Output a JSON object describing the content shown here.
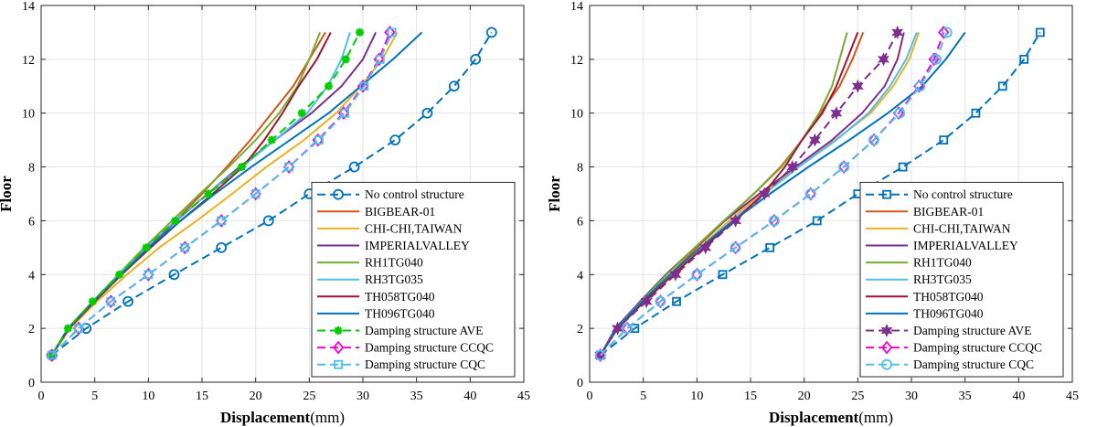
{
  "chart_data": [
    {
      "type": "line",
      "xlabel": "Displacement",
      "xunit": "(mm)",
      "ylabel": "Floor",
      "xlim": [
        0,
        45
      ],
      "ylim": [
        0,
        14
      ],
      "xticks": [
        0,
        5,
        10,
        15,
        20,
        25,
        30,
        35,
        40,
        45
      ],
      "yticks": [
        0,
        2,
        4,
        6,
        8,
        10,
        12,
        14
      ],
      "grid": true,
      "legend_position": "bottom-right",
      "series": [
        {
          "name": "No control structure",
          "color": "#0072BD",
          "dash": "dashed",
          "marker": "circle",
          "x": [
            1.0,
            4.2,
            8.1,
            12.4,
            16.8,
            21.2,
            25.0,
            29.2,
            33.0,
            36.0,
            38.5,
            40.5,
            42.0
          ],
          "y": [
            1,
            2,
            3,
            4,
            5,
            6,
            7,
            8,
            9,
            10,
            11,
            12,
            13
          ]
        },
        {
          "name": "BIGBEAR-01",
          "color": "#D95319",
          "dash": "solid",
          "marker": "none",
          "x": [
            1.0,
            2.5,
            5.0,
            7.5,
            10.0,
            12.5,
            15.0,
            17.3,
            19.5,
            21.5,
            23.5,
            25.0,
            26.5
          ],
          "y": [
            1,
            2,
            3,
            4,
            5,
            6,
            7,
            8,
            9,
            10,
            11,
            12,
            13
          ]
        },
        {
          "name": "CHI-CHI,TAIWAN",
          "color": "#EDB120",
          "dash": "solid",
          "marker": "none",
          "x": [
            1.0,
            2.7,
            5.2,
            8.0,
            11.0,
            14.5,
            17.8,
            21.0,
            24.5,
            27.5,
            29.8,
            31.8,
            33.2
          ],
          "y": [
            1,
            2,
            3,
            4,
            5,
            6,
            7,
            8,
            9,
            10,
            11,
            12,
            13
          ]
        },
        {
          "name": "IMPERIALVALLEY",
          "color": "#7E2F8E",
          "dash": "solid",
          "marker": "none",
          "x": [
            1.0,
            2.5,
            4.9,
            7.4,
            10.0,
            12.6,
            15.5,
            18.5,
            21.8,
            25.2,
            28.0,
            30.0,
            31.2
          ],
          "y": [
            1,
            2,
            3,
            4,
            5,
            6,
            7,
            8,
            9,
            10,
            11,
            12,
            13
          ]
        },
        {
          "name": "RH1TG040",
          "color": "#77AC30",
          "dash": "solid",
          "marker": "none",
          "x": [
            1.0,
            2.5,
            4.8,
            7.2,
            9.6,
            12.2,
            14.8,
            17.5,
            20.0,
            22.2,
            23.9,
            25.0,
            26.0
          ],
          "y": [
            1,
            2,
            3,
            4,
            5,
            6,
            7,
            8,
            9,
            10,
            11,
            12,
            13
          ]
        },
        {
          "name": "RH3TG035",
          "color": "#4DBEEE",
          "dash": "solid",
          "marker": "none",
          "x": [
            1.0,
            2.6,
            4.9,
            7.3,
            9.8,
            12.5,
            15.5,
            18.7,
            21.8,
            24.8,
            26.7,
            28.0,
            28.8
          ],
          "y": [
            1,
            2,
            3,
            4,
            5,
            6,
            7,
            8,
            9,
            10,
            11,
            12,
            13
          ]
        },
        {
          "name": "TH058TG040",
          "color": "#A2142F",
          "dash": "solid",
          "marker": "none",
          "x": [
            1.0,
            2.6,
            5.0,
            7.5,
            10.2,
            13.0,
            16.0,
            18.8,
            20.8,
            22.5,
            24.0,
            25.7,
            27.0
          ],
          "y": [
            1,
            2,
            3,
            4,
            5,
            6,
            7,
            8,
            9,
            10,
            11,
            12,
            13
          ]
        },
        {
          "name": "TH096TG040",
          "color": "#0072BD",
          "dash": "solid",
          "marker": "none",
          "x": [
            1.0,
            2.5,
            4.9,
            7.4,
            10.0,
            13.0,
            16.2,
            19.6,
            23.2,
            26.8,
            29.8,
            32.8,
            35.5
          ],
          "y": [
            1,
            2,
            3,
            4,
            5,
            6,
            7,
            8,
            9,
            10,
            11,
            12,
            13
          ]
        },
        {
          "name": "Damping structure AVE",
          "color": "#00CC00",
          "dash": "dashed",
          "marker": "asterisk",
          "x": [
            1.0,
            2.5,
            4.8,
            7.3,
            9.8,
            12.5,
            15.6,
            18.7,
            21.5,
            24.3,
            26.8,
            28.4,
            29.7
          ],
          "y": [
            1,
            2,
            3,
            4,
            5,
            6,
            7,
            8,
            9,
            10,
            11,
            12,
            13
          ]
        },
        {
          "name": "Damping structure CCQC",
          "color": "#FF00CC",
          "dash": "dashed",
          "marker": "diamond",
          "x": [
            1.0,
            3.5,
            6.5,
            10.0,
            13.4,
            16.8,
            20.0,
            23.1,
            25.8,
            28.2,
            30.0,
            31.5,
            32.5
          ],
          "y": [
            1,
            2,
            3,
            4,
            5,
            6,
            7,
            8,
            9,
            10,
            11,
            12,
            13
          ]
        },
        {
          "name": "Damping structure CQC",
          "color": "#4DBEEE",
          "dash": "dashed",
          "marker": "square",
          "x": [
            1.0,
            3.5,
            6.5,
            10.0,
            13.4,
            16.8,
            20.0,
            23.1,
            25.9,
            28.3,
            30.1,
            31.6,
            32.7
          ],
          "y": [
            1,
            2,
            3,
            4,
            5,
            6,
            7,
            8,
            9,
            10,
            11,
            12,
            13
          ]
        }
      ]
    },
    {
      "type": "line",
      "xlabel": "Displacement",
      "xunit": "(mm)",
      "ylabel": "Floor",
      "xlim": [
        0,
        45
      ],
      "ylim": [
        0,
        14
      ],
      "xticks": [
        0,
        5,
        10,
        15,
        20,
        25,
        30,
        35,
        40,
        45
      ],
      "yticks": [
        0,
        2,
        4,
        6,
        8,
        10,
        12,
        14
      ],
      "grid": true,
      "legend_position": "bottom-right",
      "series": [
        {
          "name": "No control structure",
          "color": "#0072BD",
          "dash": "dashed",
          "marker": "square",
          "x": [
            1.0,
            4.2,
            8.1,
            12.4,
            16.8,
            21.2,
            25.0,
            29.2,
            33.0,
            36.0,
            38.5,
            40.5,
            42.0
          ],
          "y": [
            1,
            2,
            3,
            4,
            5,
            6,
            7,
            8,
            9,
            10,
            11,
            12,
            13
          ]
        },
        {
          "name": "BIGBEAR-01",
          "color": "#D95319",
          "dash": "solid",
          "marker": "none",
          "x": [
            1.0,
            2.6,
            5.0,
            7.5,
            10.0,
            12.6,
            15.3,
            17.8,
            19.8,
            21.5,
            23.3,
            24.5,
            25.5
          ],
          "y": [
            1,
            2,
            3,
            4,
            5,
            6,
            7,
            8,
            9,
            10,
            11,
            12,
            13
          ]
        },
        {
          "name": "CHI-CHI,TAIWAN",
          "color": "#EDB120",
          "dash": "solid",
          "marker": "none",
          "x": [
            1.0,
            2.6,
            5.0,
            7.6,
            10.3,
            13.0,
            16.0,
            19.5,
            22.9,
            26.2,
            28.3,
            29.8,
            30.7
          ],
          "y": [
            1,
            2,
            3,
            4,
            5,
            6,
            7,
            8,
            9,
            10,
            11,
            12,
            13
          ]
        },
        {
          "name": "IMPERIALVALLEY",
          "color": "#7E2F8E",
          "dash": "solid",
          "marker": "none",
          "x": [
            1.0,
            2.4,
            4.7,
            7.1,
            9.8,
            12.6,
            15.8,
            19.2,
            22.6,
            25.4,
            27.5,
            28.7,
            29.3
          ],
          "y": [
            1,
            2,
            3,
            4,
            5,
            6,
            7,
            8,
            9,
            10,
            11,
            12,
            13
          ]
        },
        {
          "name": "RH1TG040",
          "color": "#77AC30",
          "dash": "solid",
          "marker": "none",
          "x": [
            1.0,
            2.5,
            4.8,
            7.2,
            9.8,
            12.5,
            15.3,
            17.9,
            19.8,
            21.4,
            22.6,
            23.3,
            24.0
          ],
          "y": [
            1,
            2,
            3,
            4,
            5,
            6,
            7,
            8,
            9,
            10,
            11,
            12,
            13
          ]
        },
        {
          "name": "RH3TG035",
          "color": "#4DBEEE",
          "dash": "solid",
          "marker": "none",
          "x": [
            1.0,
            2.5,
            4.9,
            7.5,
            10.3,
            13.3,
            16.3,
            19.5,
            23.0,
            26.0,
            28.0,
            29.5,
            30.5
          ],
          "y": [
            1,
            2,
            3,
            4,
            5,
            6,
            7,
            8,
            9,
            10,
            11,
            12,
            13
          ]
        },
        {
          "name": "TH058TG040",
          "color": "#A2142F",
          "dash": "solid",
          "marker": "none",
          "x": [
            1.0,
            2.6,
            5.1,
            7.8,
            10.6,
            13.5,
            16.2,
            18.2,
            19.8,
            21.7,
            23.0,
            24.0,
            25.0
          ],
          "y": [
            1,
            2,
            3,
            4,
            5,
            6,
            7,
            8,
            9,
            10,
            11,
            12,
            13
          ]
        },
        {
          "name": "TH096TG040",
          "color": "#0072BD",
          "dash": "solid",
          "marker": "none",
          "x": [
            1.0,
            2.5,
            4.9,
            7.5,
            10.3,
            13.4,
            16.8,
            20.4,
            24.2,
            27.8,
            31.0,
            33.2,
            35.0
          ],
          "y": [
            1,
            2,
            3,
            4,
            5,
            6,
            7,
            8,
            9,
            10,
            11,
            12,
            13
          ]
        },
        {
          "name": "Damping structure AVE",
          "color": "#7E2F8E",
          "dash": "dashed",
          "marker": "star",
          "x": [
            1.0,
            2.6,
            5.3,
            8.0,
            10.8,
            13.6,
            16.3,
            18.9,
            21.0,
            23.0,
            25.0,
            27.4,
            28.7
          ],
          "y": [
            1,
            2,
            3,
            4,
            5,
            6,
            7,
            8,
            9,
            10,
            11,
            12,
            13
          ]
        },
        {
          "name": "Damping structure CCQC",
          "color": "#FF00CC",
          "dash": "dashed",
          "marker": "diamond",
          "x": [
            1.0,
            3.5,
            6.6,
            10.0,
            13.6,
            17.2,
            20.6,
            23.7,
            26.5,
            28.8,
            30.7,
            32.1,
            33.0
          ],
          "y": [
            1,
            2,
            3,
            4,
            5,
            6,
            7,
            8,
            9,
            10,
            11,
            12,
            13
          ]
        },
        {
          "name": "Damping structure CQC",
          "color": "#4DBEEE",
          "dash": "dashed",
          "marker": "circle",
          "x": [
            1.0,
            3.5,
            6.6,
            10.0,
            13.6,
            17.2,
            20.6,
            23.7,
            26.5,
            28.9,
            30.8,
            32.3,
            33.3
          ],
          "y": [
            1,
            2,
            3,
            4,
            5,
            6,
            7,
            8,
            9,
            10,
            11,
            12,
            13
          ]
        }
      ]
    }
  ]
}
